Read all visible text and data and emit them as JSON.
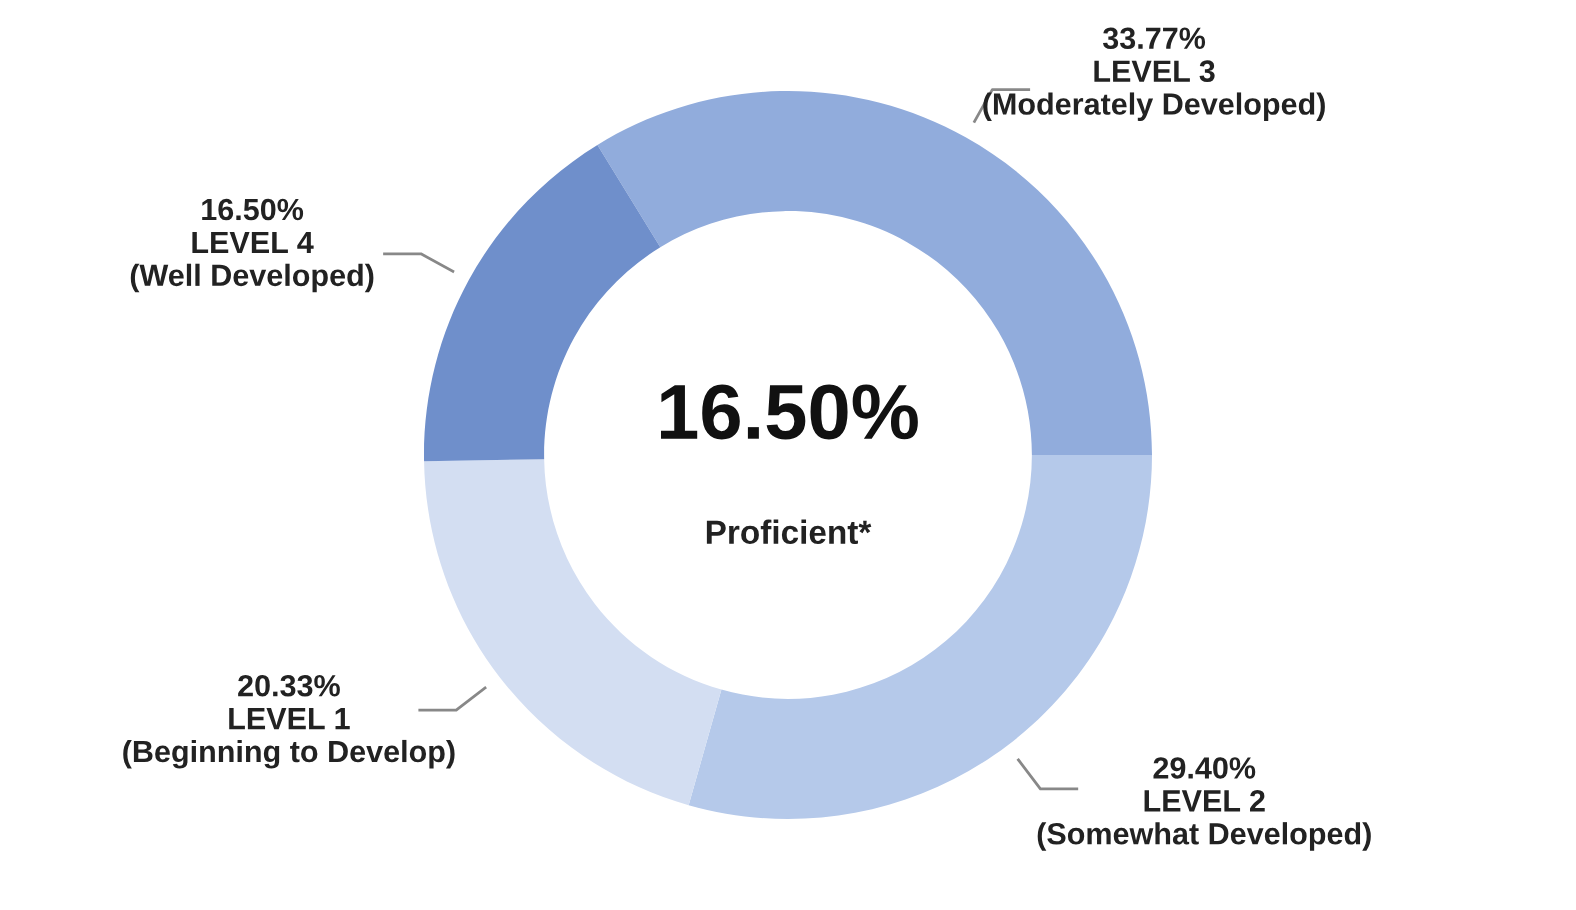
{
  "chart_data": {
    "type": "donut",
    "categories": [
      "LEVEL 3\n(Moderately Developed)",
      "LEVEL 2\n(Somewhat Developed)",
      "LEVEL 1\n(Beginning to Develop)",
      "LEVEL 4\n(Well Developed)"
    ],
    "values": [
      33.77,
      29.4,
      20.33,
      16.5
    ],
    "value_labels": [
      "33.77%",
      "29.40%",
      "20.33%",
      "16.50%"
    ],
    "colors": [
      "#91acdc",
      "#b5c9ea",
      "#d3def2",
      "#6f8fcb"
    ],
    "annotations": [
      "16.50%",
      "Proficient*"
    ],
    "legend": false
  }
}
